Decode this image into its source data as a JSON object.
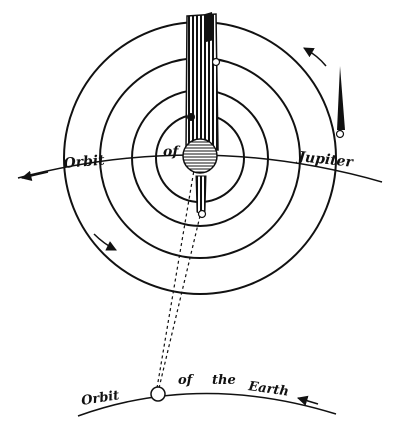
{
  "labels": {
    "jupiter_orbit_word_1": "Orbit",
    "jupiter_orbit_word_2": "of",
    "jupiter_orbit_word_3": "Jupiter",
    "earth_orbit_word_1": "Orbit",
    "earth_orbit_word_2": "of",
    "earth_orbit_word_3": "the",
    "earth_orbit_word_4": "Earth"
  },
  "colors": {
    "ink": "#111111",
    "paper": "#ffffff"
  },
  "icons": {
    "jupiter": "hatched-planet-disc",
    "earth": "small-planet-circle",
    "jupiter_shadow": "hatched-shadow-column",
    "comet": "comet-with-tail",
    "direction": "arrow-icon"
  }
}
